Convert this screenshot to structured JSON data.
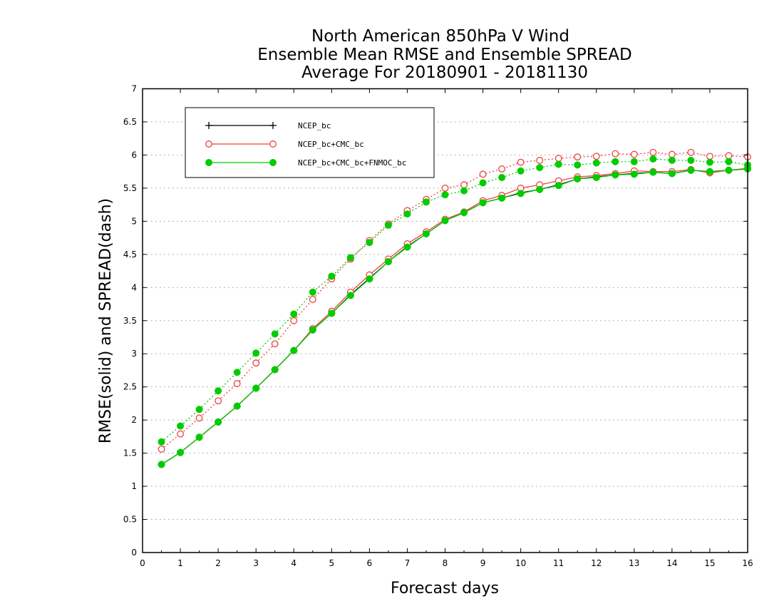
{
  "chart_data": {
    "type": "line",
    "title": [
      "North American 850hPa V Wind",
      "Ensemble Mean RMSE and Ensemble SPREAD",
      "Average For 20180901 - 20181130"
    ],
    "xlabel": "Forecast days",
    "ylabel": "RMSE(solid) and SPREAD(dash)",
    "xlim": [
      0,
      16
    ],
    "ylim": [
      0,
      7
    ],
    "xticks": [
      "0",
      "1",
      "2",
      "3",
      "4",
      "5",
      "6",
      "7",
      "8",
      "9",
      "10",
      "11",
      "12",
      "13",
      "14",
      "15",
      "16"
    ],
    "yticks": [
      "0",
      "0.5",
      "1",
      "1.5",
      "2",
      "2.5",
      "3",
      "3.5",
      "4",
      "4.5",
      "5",
      "5.5",
      "6",
      "6.5",
      "7"
    ],
    "grid": "horizontal dotted",
    "legend": {
      "placement": "upper-left",
      "entries": [
        "NCEP_bc",
        "NCEP_bc+CMC_bc",
        "NCEP_bc+CMC_bc+FNMOC_bc"
      ]
    },
    "x": [
      0.5,
      1,
      1.5,
      2,
      2.5,
      3,
      3.5,
      4,
      4.5,
      5,
      5.5,
      6,
      6.5,
      7,
      7.5,
      8,
      8.5,
      9,
      9.5,
      10,
      10.5,
      11,
      11.5,
      12,
      12.5,
      13,
      13.5,
      14,
      14.5,
      15,
      15.5,
      16
    ],
    "series": [
      {
        "name": "NCEP_bc",
        "metric": "RMSE",
        "style": "solid",
        "marker": "plus",
        "color": "#000000",
        "values": [
          1.33,
          1.51,
          1.74,
          1.97,
          2.21,
          2.48,
          2.76,
          3.05,
          3.36,
          3.61,
          3.89,
          4.14,
          4.39,
          4.62,
          4.81,
          5.01,
          5.13,
          5.28,
          5.35,
          5.43,
          5.48,
          5.55,
          5.64,
          5.67,
          5.7,
          5.72,
          5.74,
          5.72,
          5.77,
          5.75,
          5.77,
          5.79
        ]
      },
      {
        "name": "NCEP_bc+CMC_bc",
        "metric": "RMSE",
        "style": "solid",
        "marker": "open-circle",
        "color": "#f04040",
        "values": [
          1.33,
          1.51,
          1.74,
          1.97,
          2.21,
          2.48,
          2.76,
          3.05,
          3.38,
          3.64,
          3.93,
          4.19,
          4.43,
          4.66,
          4.84,
          5.03,
          5.14,
          5.31,
          5.39,
          5.5,
          5.55,
          5.61,
          5.67,
          5.69,
          5.72,
          5.76,
          5.75,
          5.75,
          5.78,
          5.73,
          5.77,
          5.8
        ]
      },
      {
        "name": "NCEP_bc+CMC_bc+FNMOC_bc",
        "metric": "RMSE",
        "style": "solid",
        "marker": "filled-circle",
        "color": "#00cc00",
        "values": [
          1.33,
          1.51,
          1.74,
          1.97,
          2.21,
          2.48,
          2.76,
          3.05,
          3.36,
          3.61,
          3.88,
          4.13,
          4.39,
          4.61,
          4.81,
          5.01,
          5.13,
          5.28,
          5.35,
          5.42,
          5.48,
          5.54,
          5.64,
          5.66,
          5.7,
          5.71,
          5.74,
          5.72,
          5.77,
          5.75,
          5.77,
          5.79
        ]
      },
      {
        "name": "NCEP_bc+CMC_bc",
        "metric": "SPREAD",
        "style": "dotted",
        "marker": "open-circle",
        "color": "#f04040",
        "values": [
          1.56,
          1.79,
          2.03,
          2.29,
          2.55,
          2.86,
          3.15,
          3.5,
          3.82,
          4.13,
          4.43,
          4.71,
          4.96,
          5.16,
          5.33,
          5.5,
          5.55,
          5.71,
          5.79,
          5.89,
          5.92,
          5.95,
          5.97,
          5.98,
          6.02,
          6.01,
          6.04,
          6.01,
          6.04,
          5.98,
          5.99,
          5.97
        ]
      },
      {
        "name": "NCEP_bc+CMC_bc+FNMOC_bc",
        "metric": "SPREAD",
        "style": "dotted",
        "marker": "filled-circle",
        "color": "#00cc00",
        "values": [
          1.67,
          1.91,
          2.16,
          2.44,
          2.72,
          3.01,
          3.3,
          3.6,
          3.93,
          4.17,
          4.45,
          4.68,
          4.94,
          5.11,
          5.29,
          5.4,
          5.46,
          5.58,
          5.66,
          5.76,
          5.81,
          5.86,
          5.85,
          5.88,
          5.9,
          5.9,
          5.94,
          5.92,
          5.92,
          5.89,
          5.9,
          5.85
        ]
      }
    ]
  }
}
